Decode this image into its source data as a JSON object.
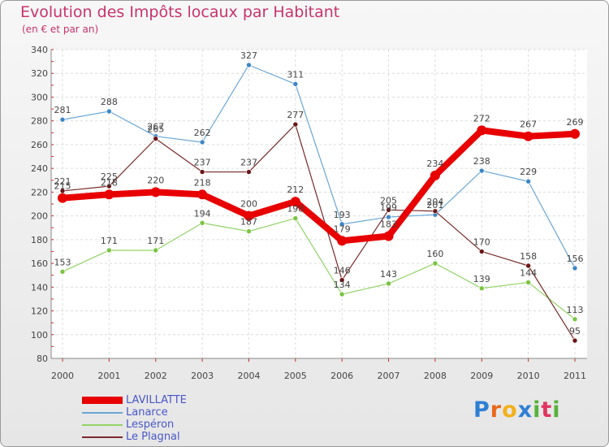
{
  "title": "Evolution des Impôts locaux par Habitant",
  "subtitle": "(en € et par an)",
  "logo": {
    "text": "Proxiti",
    "colors": [
      "#2e7fd4",
      "#e8681d",
      "#f2b01e",
      "#2e7fd4",
      "#55b33b",
      "#e0365f",
      "#55b33b"
    ]
  },
  "chart_data": {
    "type": "line",
    "title": "Evolution des Impôts locaux par Habitant",
    "subtitle": "(en € et par an)",
    "xlabel": "",
    "ylabel": "",
    "categories": [
      "2000",
      "2001",
      "2002",
      "2003",
      "2004",
      "2005",
      "2006",
      "2007",
      "2008",
      "2009",
      "2010",
      "2011"
    ],
    "ylim": [
      80,
      340
    ],
    "yticks": [
      80,
      100,
      120,
      140,
      160,
      180,
      200,
      220,
      240,
      260,
      280,
      300,
      320,
      340
    ],
    "grid": true,
    "legend_position": "bottom-left",
    "series": [
      {
        "name": "LAVILLATTE",
        "color": "#e80000",
        "emphasis": true,
        "values": [
          215,
          218,
          220,
          218,
          200,
          212,
          179,
          183,
          234,
          272,
          267,
          269
        ],
        "labels": [
          "215",
          "218",
          "220",
          "218",
          "200",
          "212",
          "179",
          "183",
          "234",
          "272",
          "267",
          "269"
        ]
      },
      {
        "name": "Lanarce",
        "color": "#6aa7d6",
        "marker": "#3d86c6",
        "values": [
          281,
          288,
          267,
          262,
          327,
          311,
          193,
          199,
          201,
          238,
          229,
          156
        ],
        "labels": [
          "281",
          "288",
          "267",
          "262",
          "327",
          "311",
          "193",
          "199",
          "201",
          "238",
          "229",
          "156"
        ]
      },
      {
        "name": "Lespéron",
        "color": "#92d466",
        "marker": "#79c53f",
        "values": [
          153,
          171,
          171,
          194,
          187,
          198,
          134,
          143,
          160,
          139,
          144,
          113
        ],
        "labels": [
          "153",
          "171",
          "171",
          "194",
          "187",
          "198",
          "134",
          "143",
          "160",
          "139",
          "144",
          "113"
        ]
      },
      {
        "name": "Le Plagnal",
        "color": "#7a2a2a",
        "marker": "#6a1616",
        "values": [
          221,
          225,
          265,
          237,
          237,
          277,
          146,
          205,
          204,
          170,
          158,
          95
        ],
        "labels": [
          "221",
          "225",
          "265",
          "237",
          "237",
          "277",
          "146",
          "205",
          "204",
          "170",
          "158",
          "95"
        ]
      }
    ]
  }
}
